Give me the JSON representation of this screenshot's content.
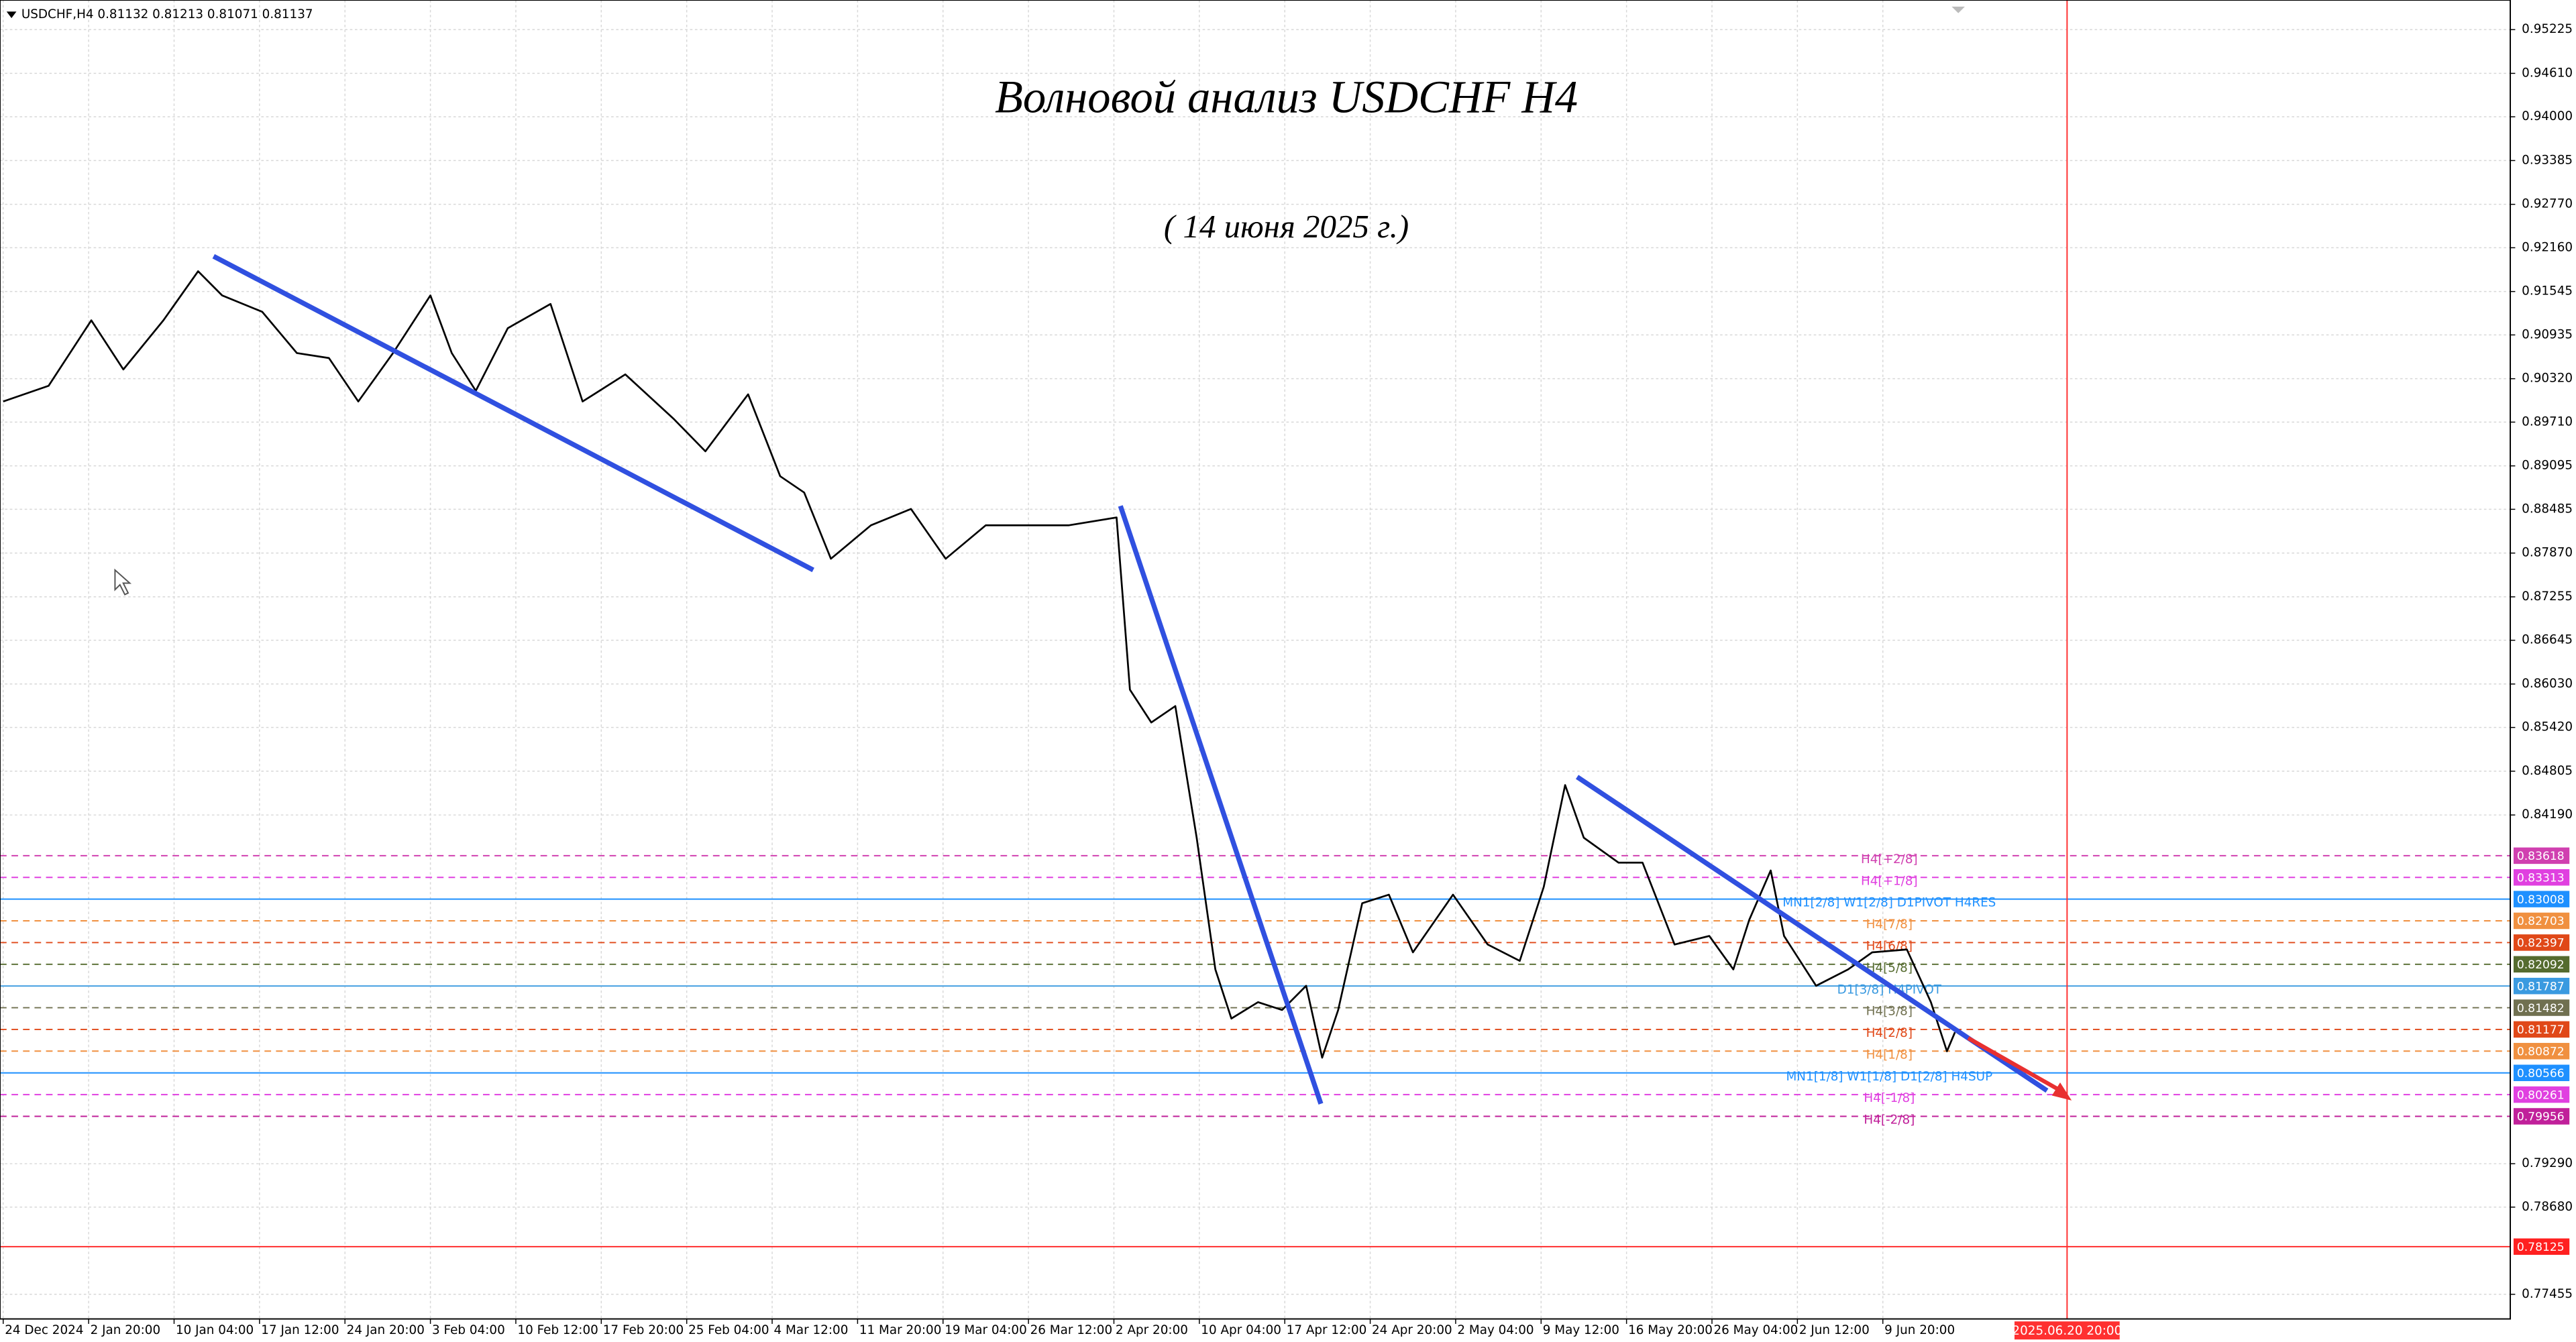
{
  "chart_data": {
    "type": "line",
    "header": "USDCHF,H4  0.81132 0.81213 0.81071 0.81137",
    "title": "Волновой анализ USDCHF H4",
    "subtitle": "( 14 июня 2025 г.)",
    "color": "#000000",
    "grid": true,
    "x": [
      0,
      17,
      33,
      45,
      60,
      73,
      82,
      97,
      110,
      122,
      133,
      146,
      160,
      168,
      177,
      189,
      205,
      217,
      233,
      251,
      263,
      279,
      291,
      300,
      310,
      325,
      340,
      353,
      368,
      383,
      399,
      417,
      422,
      430,
      439,
      447,
      454,
      460,
      470,
      479,
      488,
      494,
      500,
      509,
      519,
      528,
      543,
      556,
      568,
      577,
      585,
      592,
      605,
      614,
      626,
      639,
      648,
      654,
      662,
      667,
      679,
      691,
      700,
      713,
      722,
      728,
      731
    ],
    "values": [
      0.9,
      0.9022,
      0.9114,
      0.9045,
      0.9114,
      0.9183,
      0.9149,
      0.9126,
      0.9068,
      0.9061,
      0.9,
      0.9068,
      0.9149,
      0.9068,
      0.9015,
      0.9103,
      0.9137,
      0.9,
      0.9038,
      0.8976,
      0.893,
      0.901,
      0.8895,
      0.8872,
      0.8779,
      0.8826,
      0.8849,
      0.8779,
      0.8826,
      0.8826,
      0.8826,
      0.8837,
      0.8595,
      0.8549,
      0.8572,
      0.8387,
      0.8202,
      0.8133,
      0.8156,
      0.8145,
      0.8179,
      0.8078,
      0.8145,
      0.8295,
      0.8307,
      0.8226,
      0.8307,
      0.8237,
      0.8214,
      0.8318,
      0.8461,
      0.8387,
      0.8352,
      0.8352,
      0.8237,
      0.8249,
      0.8202,
      0.8272,
      0.8341,
      0.8249,
      0.8179,
      0.8202,
      0.8226,
      0.823,
      0.8156,
      0.8087,
      0.81137
    ],
    "xlim": [
      -1.2,
      939
    ],
    "ylim": [
      0.77109,
      0.9564
    ],
    "xticks": [
      {
        "value": 0,
        "label": "24 Dec 2024"
      },
      {
        "value": 32,
        "label": "2 Jan 20:00"
      },
      {
        "value": 64,
        "label": "10 Jan 04:00"
      },
      {
        "value": 96,
        "label": "17 Jan 12:00"
      },
      {
        "value": 128,
        "label": "24 Jan 20:00"
      },
      {
        "value": 160,
        "label": "3 Feb 04:00"
      },
      {
        "value": 192,
        "label": "10 Feb 12:00"
      },
      {
        "value": 224,
        "label": "17 Feb 20:00"
      },
      {
        "value": 256,
        "label": "25 Feb 04:00"
      },
      {
        "value": 288,
        "label": "4 Mar 12:00"
      },
      {
        "value": 320,
        "label": "11 Mar 20:00"
      },
      {
        "value": 352,
        "label": "19 Mar 04:00"
      },
      {
        "value": 384,
        "label": "26 Mar 12:00"
      },
      {
        "value": 416,
        "label": "2 Apr 20:00"
      },
      {
        "value": 448,
        "label": "10 Apr 04:00"
      },
      {
        "value": 480,
        "label": "17 Apr 12:00"
      },
      {
        "value": 512,
        "label": "24 Apr 20:00"
      },
      {
        "value": 544,
        "label": "2 May 04:00"
      },
      {
        "value": 576,
        "label": "9 May 12:00"
      },
      {
        "value": 608,
        "label": "16 May 20:00"
      },
      {
        "value": 640,
        "label": "26 May 04:00"
      },
      {
        "value": 672,
        "label": "2 Jun 12:00"
      },
      {
        "value": 704,
        "label": "9 Jun 20:00"
      }
    ],
    "yticks": [
      0.95225,
      {
        "value": 0.9461,
        "label": "0.94610"
      },
      {
        "value": 0.94,
        "label": "0.94000"
      },
      0.93385,
      {
        "value": 0.9277,
        "label": "0.92770"
      },
      {
        "value": 0.9216,
        "label": "0.92160"
      },
      0.91545,
      0.90935,
      {
        "value": 0.9032,
        "label": "0.90320"
      },
      {
        "value": 0.8971,
        "label": "0.89710"
      },
      0.89095,
      0.88485,
      {
        "value": 0.8787,
        "label": "0.87870"
      },
      0.87255,
      0.86645,
      {
        "value": 0.8603,
        "label": "0.86030"
      },
      {
        "value": 0.8542,
        "label": "0.85420"
      },
      0.84805,
      {
        "value": 0.8419,
        "label": "0.84190"
      },
      {
        "value": 0.7929,
        "label": "0.79290"
      },
      {
        "value": 0.7868,
        "label": "0.78680"
      },
      0.77455
    ],
    "vline": {
      "value": 773,
      "label": "2025.06.20 20:00",
      "color": "#ff3030"
    },
    "levels": [
      {
        "value": 0.83618,
        "name": "H4[+2/8]",
        "color": "#d040b0",
        "dash": true
      },
      {
        "value": 0.83313,
        "name": "H4[+1/8]",
        "color": "#e040e0",
        "dash": true
      },
      {
        "value": 0.83008,
        "name": "MN1[2/8] W1[2/8] D1PIVOT H4RES",
        "color": "#1e90ff",
        "dash": false
      },
      {
        "value": 0.82703,
        "name": "H4[7/8]",
        "color": "#f09040",
        "dash": true
      },
      {
        "value": 0.82397,
        "name": "H4[6/8]",
        "color": "#e04818",
        "dash": true
      },
      {
        "value": 0.82092,
        "name": "H4[5/8]",
        "color": "#556b2f",
        "dash": true
      },
      {
        "value": 0.81787,
        "name": "D1[3/8] H4PIVOT",
        "color": "#3a9ae0",
        "dash": false
      },
      {
        "value": 0.81482,
        "name": "H4[3/8]",
        "color": "#707050",
        "dash": true
      },
      {
        "value": 0.81177,
        "name": "H4[2/8]",
        "color": "#e04818",
        "dash": true
      },
      {
        "value": 0.80872,
        "name": "H4[1/8]",
        "color": "#f09040",
        "dash": true
      },
      {
        "value": 0.80566,
        "name": "MN1[1/8] W1[1/8] D1[2/8] H4SUP",
        "color": "#1e90ff",
        "dash": false
      },
      {
        "value": 0.80261,
        "name": "H4[-1/8]",
        "color": "#e040e0",
        "dash": true
      },
      {
        "value": 0.79956,
        "name": "H4[-2/8]",
        "color": "#c0209a",
        "dash": true
      },
      {
        "value": 0.78125,
        "color": "#ff2020",
        "dash": false
      }
    ]
  }
}
